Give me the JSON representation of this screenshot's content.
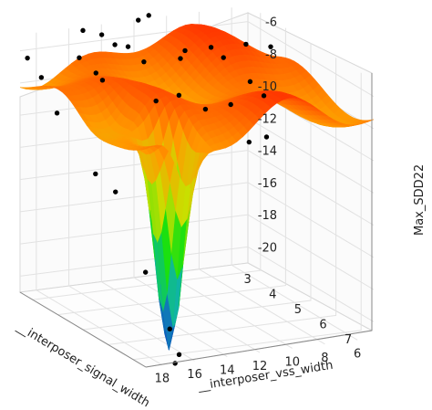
{
  "chart_data": {
    "type": "surface",
    "title": "",
    "xlabel": "__interposer_signal_width",
    "ylabel": "__interposer_vss_width",
    "zlabel": "Max_SDD22",
    "x_ticks": [
      "3",
      "4",
      "5",
      "6",
      "7"
    ],
    "y_ticks": [
      "18",
      "16",
      "14",
      "12",
      "10",
      "8",
      "6"
    ],
    "z_ticks": [
      "-6",
      "-8",
      "-10",
      "-12",
      "-14",
      "-16",
      "-18",
      "-20"
    ],
    "xlim": [
      2.5,
      7.5
    ],
    "ylim": [
      5,
      19
    ],
    "zlim": [
      -21,
      -5
    ],
    "grid": true,
    "colormap": [
      "#1040c0",
      "#10b0b0",
      "#10e010",
      "#c8e000",
      "#ff9a00",
      "#ff3000"
    ],
    "marker_color": "#000000",
    "surface_valley": {
      "x": 6.8,
      "y": 16.5,
      "z": -20.5
    },
    "points": [
      [
        2.6,
        18.7,
        -6.4
      ],
      [
        2.7,
        18.0,
        -7.6
      ],
      [
        3.0,
        17.5,
        -9.6
      ],
      [
        4.4,
        17.3,
        -12.1
      ],
      [
        5.0,
        17.0,
        -12.7
      ],
      [
        3.3,
        16.6,
        -6.0
      ],
      [
        3.9,
        16.5,
        -6.4
      ],
      [
        3.9,
        16.1,
        -6.9
      ],
      [
        6.0,
        16.7,
        -16.8
      ],
      [
        6.9,
        16.6,
        -19.5
      ],
      [
        7.4,
        16.8,
        -20.6
      ],
      [
        7.5,
        17.2,
        -21.0
      ],
      [
        2.8,
        15.6,
        -4.9
      ],
      [
        2.9,
        14.6,
        -5.2
      ],
      [
        3.1,
        14.1,
        -5.7
      ],
      [
        3.3,
        13.6,
        -5.7
      ],
      [
        3.8,
        13.4,
        -6.2
      ],
      [
        4.8,
        14.2,
        -7.6
      ],
      [
        5.0,
        13.1,
        -7.2
      ],
      [
        5.6,
        12.4,
        -7.6
      ],
      [
        5.7,
        11.0,
        -7.4
      ],
      [
        6.3,
        10.8,
        -9.2
      ],
      [
        2.8,
        12.2,
        -4.7
      ],
      [
        2.7,
        11.4,
        -4.6
      ],
      [
        3.7,
        11.0,
        -6.4
      ],
      [
        3.3,
        10.1,
        -6.4
      ],
      [
        3.3,
        8.5,
        -6.4
      ],
      [
        3.6,
        8.2,
        -6.8
      ],
      [
        4.4,
        7.8,
        -7.6
      ],
      [
        4.3,
        6.8,
        -8.7
      ],
      [
        3.2,
        6.2,
        -6.6
      ],
      [
        3.6,
        5.3,
        -6.5
      ],
      [
        5.7,
        8.8,
        -9.7
      ]
    ]
  }
}
